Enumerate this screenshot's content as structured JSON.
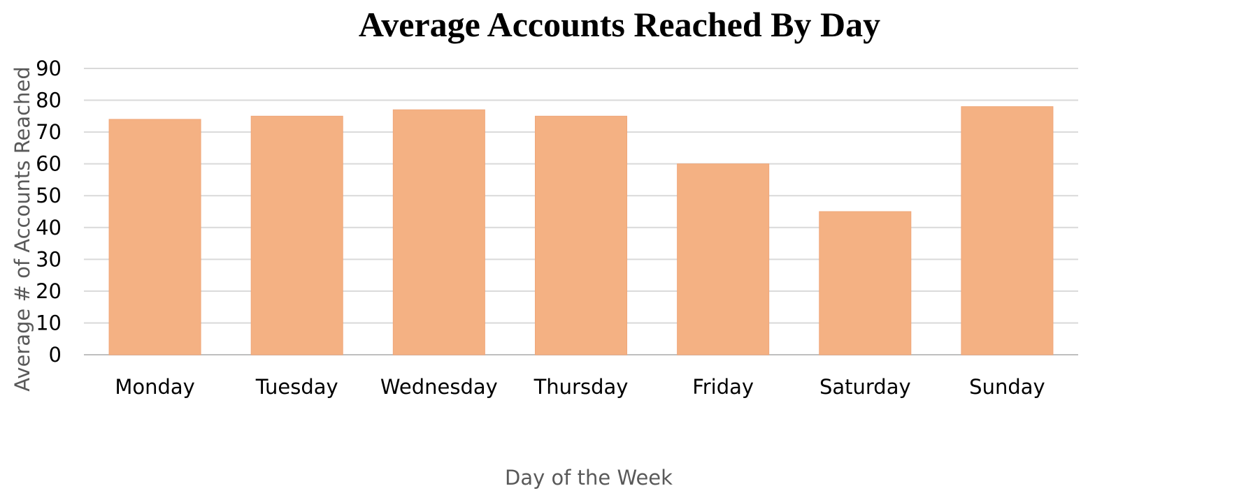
{
  "chart_data": {
    "type": "bar",
    "title": "Average Accounts Reached By Day",
    "xlabel": "Day of the Week",
    "ylabel": "Average # of Accounts Reached",
    "categories": [
      "Monday",
      "Tuesday",
      "Wednesday",
      "Thursday",
      "Friday",
      "Saturday",
      "Sunday"
    ],
    "values": [
      74,
      75,
      77,
      75,
      60,
      45,
      78
    ],
    "ylim": [
      0,
      90
    ],
    "yticks": [
      "0",
      "10",
      "20",
      "30",
      "40",
      "50",
      "60",
      "70",
      "80",
      "90"
    ],
    "grid": true,
    "legend": "none",
    "colors": {
      "bar": "#F4B183",
      "bar_edge": "#F0A77A",
      "grid": "#D9D9D9",
      "axis": "#BFBFBF"
    }
  }
}
